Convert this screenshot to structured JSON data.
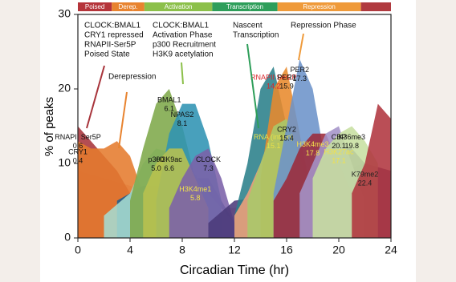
{
  "chart_data": {
    "type": "area",
    "x_label": "Circadian Time (hr)",
    "y_label": "% of peaks",
    "xlim": [
      0,
      24
    ],
    "xticks": [
      0,
      4,
      8,
      12,
      16,
      20,
      24
    ],
    "ylim": [
      0,
      30
    ],
    "yticks": [
      0,
      10,
      20,
      30
    ],
    "phases": [
      {
        "label": "Poised",
        "start": 0,
        "end": 2.6,
        "color": "#b5343a"
      },
      {
        "label": "Derep.",
        "start": 2.6,
        "end": 5.1,
        "color": "#e8832f"
      },
      {
        "label": "Activation",
        "start": 5.1,
        "end": 10.3,
        "color": "#8cc04a"
      },
      {
        "label": "Transcription",
        "start": 10.3,
        "end": 15.3,
        "color": "#2e9e5a"
      },
      {
        "label": "Repression",
        "start": 15.3,
        "end": 21.7,
        "color": "#ef9a3a"
      },
      {
        "start": 21.7,
        "end": 24,
        "color": "#b03a3f"
      }
    ],
    "annotations": [
      [
        "CLOCK:BMAL1",
        "CRY1 repressed",
        "RNAPII-Ser5P",
        "Poised State"
      ],
      [
        "Derepression"
      ],
      [
        "CLOCK:BMAL1",
        "Activation Phase",
        "p300 Recruitment",
        "H3K9 acetylation"
      ],
      [
        "Nascent",
        "Transcription"
      ],
      [
        "Repression Phase"
      ]
    ],
    "series": [
      {
        "name": "K79me2",
        "phase": 22.4,
        "color": "#e6b0b4",
        "label_color": "#222",
        "x": [
          0,
          2,
          4,
          6,
          8,
          10,
          12,
          14,
          16,
          18,
          20,
          22,
          24
        ],
        "values": [
          9,
          8,
          7,
          6,
          5,
          4,
          4,
          5,
          6,
          7,
          9,
          10,
          9
        ]
      },
      {
        "name": "RNAPII Ser5P",
        "phase": 0.6,
        "color": "#a8343b",
        "label_color": "#111",
        "x": [
          0,
          1,
          2,
          3,
          4,
          5
        ],
        "values": [
          15,
          13,
          11,
          9,
          6,
          3
        ]
      },
      {
        "name": "CRY1",
        "phase": 0.4,
        "color": "#e57b2e",
        "label_color": "#111",
        "x": [
          0,
          1,
          2,
          3,
          4,
          5,
          6
        ],
        "values": [
          13,
          12,
          12,
          13,
          11,
          6,
          3
        ]
      },
      {
        "name": "H3K4me1",
        "phase": 5.8,
        "color": "#1f5f8f",
        "label_color": "#f2e24a",
        "x": [
          3,
          5,
          7,
          8,
          9,
          10,
          11,
          12
        ],
        "values": [
          5,
          7,
          7,
          6,
          8,
          8,
          5,
          2
        ]
      },
      {
        "name": "p300",
        "phase": 5,
        "phase_label": "5.0",
        "color": "#a6dcd2",
        "label_color": "#111",
        "x": [
          2,
          4,
          5,
          6,
          8,
          10,
          12
        ],
        "values": [
          3,
          6,
          10,
          12,
          11,
          6,
          2
        ]
      },
      {
        "name": "BMAL1",
        "phase": 6.1,
        "color": "#7ea94a",
        "label_color": "#111",
        "x": [
          4,
          5,
          6,
          7,
          8,
          9,
          10
        ],
        "values": [
          5,
          12,
          18,
          20,
          15,
          8,
          3
        ]
      },
      {
        "name": "NPAS2",
        "phase": 8.1,
        "color": "#2f93b3",
        "label_color": "#111",
        "x": [
          6,
          7,
          8,
          9,
          10,
          11
        ],
        "values": [
          5,
          14,
          18,
          18,
          13,
          5
        ]
      },
      {
        "name": "H3K9ac",
        "phase": 6.6,
        "color": "#b8c24e",
        "label_color": "#111",
        "x": [
          5,
          6,
          7,
          8,
          9,
          10
        ],
        "values": [
          6,
          10,
          12,
          12,
          8,
          4
        ]
      },
      {
        "name": "CLOCK",
        "phase": 7.3,
        "color": "#7b61a8",
        "label_color": "#111",
        "x": [
          7,
          8,
          9,
          10,
          11,
          12
        ],
        "values": [
          4,
          8,
          11,
          12,
          8,
          2
        ]
      },
      {
        "name": "H3K27ac",
        "phase": 17.1,
        "color": "#4b3a7a",
        "label_color": "#f2e24a",
        "x": [
          10,
          12,
          14,
          16,
          18,
          19,
          20,
          21,
          22,
          24
        ],
        "values": [
          2,
          5,
          5.5,
          7,
          9,
          11,
          13,
          12,
          10,
          9
        ]
      },
      {
        "name": "RNAPII Ser2P",
        "phase": 14.2,
        "color": "#2a7f8a",
        "label_color": "#d9252b",
        "x": [
          12,
          13,
          14,
          15,
          16
        ],
        "values": [
          3,
          10,
          20,
          23,
          15
        ]
      },
      {
        "name": "RNA (intron)",
        "phase": 15.1,
        "color": "#f0a27a",
        "label_color": "#e8e04a",
        "x": [
          12,
          13,
          14,
          15,
          16,
          17
        ],
        "values": [
          3,
          6,
          10,
          15,
          12,
          5
        ]
      },
      {
        "name": "PER1",
        "phase": 15.9,
        "color": "#e88a2c",
        "label_color": "#111",
        "x": [
          14,
          15,
          16,
          17,
          18
        ],
        "values": [
          8,
          20,
          23,
          14,
          5
        ]
      },
      {
        "name": "CRY2",
        "phase": 15.4,
        "color": "#a9c96a",
        "label_color": "#111",
        "x": [
          13,
          14,
          15,
          16,
          17,
          18
        ],
        "values": [
          5,
          10,
          15,
          16,
          11,
          5
        ]
      },
      {
        "name": "PER2",
        "phase": 17.3,
        "color": "#6c93c9",
        "label_color": "#111",
        "x": [
          15,
          16,
          17,
          18,
          19,
          20
        ],
        "values": [
          6,
          15,
          24,
          20,
          10,
          4
        ]
      },
      {
        "name": "H3K4me3",
        "phase": 17.8,
        "color": "#9c2a3a",
        "label_color": "#f2e24a",
        "x": [
          15,
          16,
          17,
          18,
          19,
          20,
          21
        ],
        "values": [
          5,
          8,
          12,
          14,
          14,
          10,
          6
        ]
      },
      {
        "name": "CBP",
        "phase": 20.1,
        "color": "#a493c8",
        "label_color": "#111",
        "x": [
          17,
          18,
          19,
          20,
          21,
          22
        ],
        "values": [
          6,
          10,
          14,
          15,
          10,
          5
        ]
      },
      {
        "name": "K36me3",
        "phase": 19.8,
        "color": "#c7dfa0",
        "label_color": "#111",
        "x": [
          18,
          19,
          20,
          21,
          22,
          23
        ],
        "values": [
          8,
          12,
          14,
          15,
          13,
          10
        ]
      },
      {
        "color": "#b0363f",
        "x": [
          21,
          22,
          23,
          24
        ],
        "values": [
          6,
          10,
          18,
          16
        ]
      }
    ]
  }
}
